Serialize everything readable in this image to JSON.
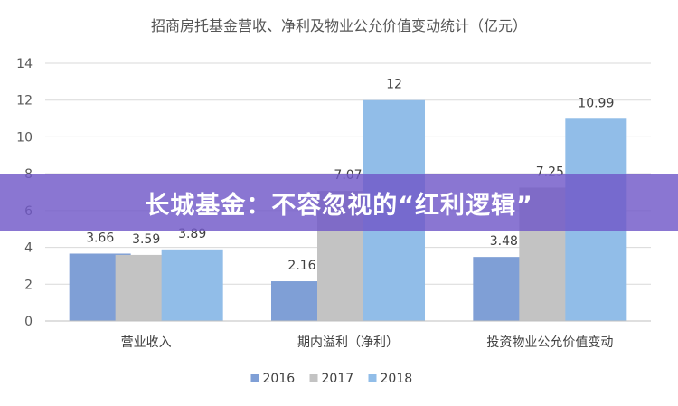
{
  "chart_data": {
    "type": "bar",
    "title": "招商房托基金营收、净利及物业公允价值变动统计（亿元）",
    "categories": [
      "营业收入",
      "期内溢利（净利）",
      "投资物业公允价值变动"
    ],
    "series": [
      {
        "name": "2016",
        "color": "#7f9fd6",
        "values": [
          3.66,
          2.16,
          3.48
        ],
        "labels": [
          "3.66",
          "2.16",
          "3.48"
        ]
      },
      {
        "name": "2017",
        "color": "#c3c3c3",
        "values": [
          3.59,
          7.07,
          7.25
        ],
        "labels": [
          "3.59",
          "7.07",
          "7.25"
        ]
      },
      {
        "name": "2018",
        "color": "#91bde8",
        "values": [
          3.89,
          12,
          10.99
        ],
        "labels": [
          "3.89",
          "12",
          "10.99"
        ]
      }
    ],
    "ylim": [
      0,
      14
    ],
    "yticks": [
      0,
      2,
      4,
      6,
      8,
      10,
      12,
      14
    ],
    "grid": true,
    "legend_position": "bottom"
  },
  "banner": {
    "text": "长城基金：不容忽视的“红利逻辑”"
  }
}
